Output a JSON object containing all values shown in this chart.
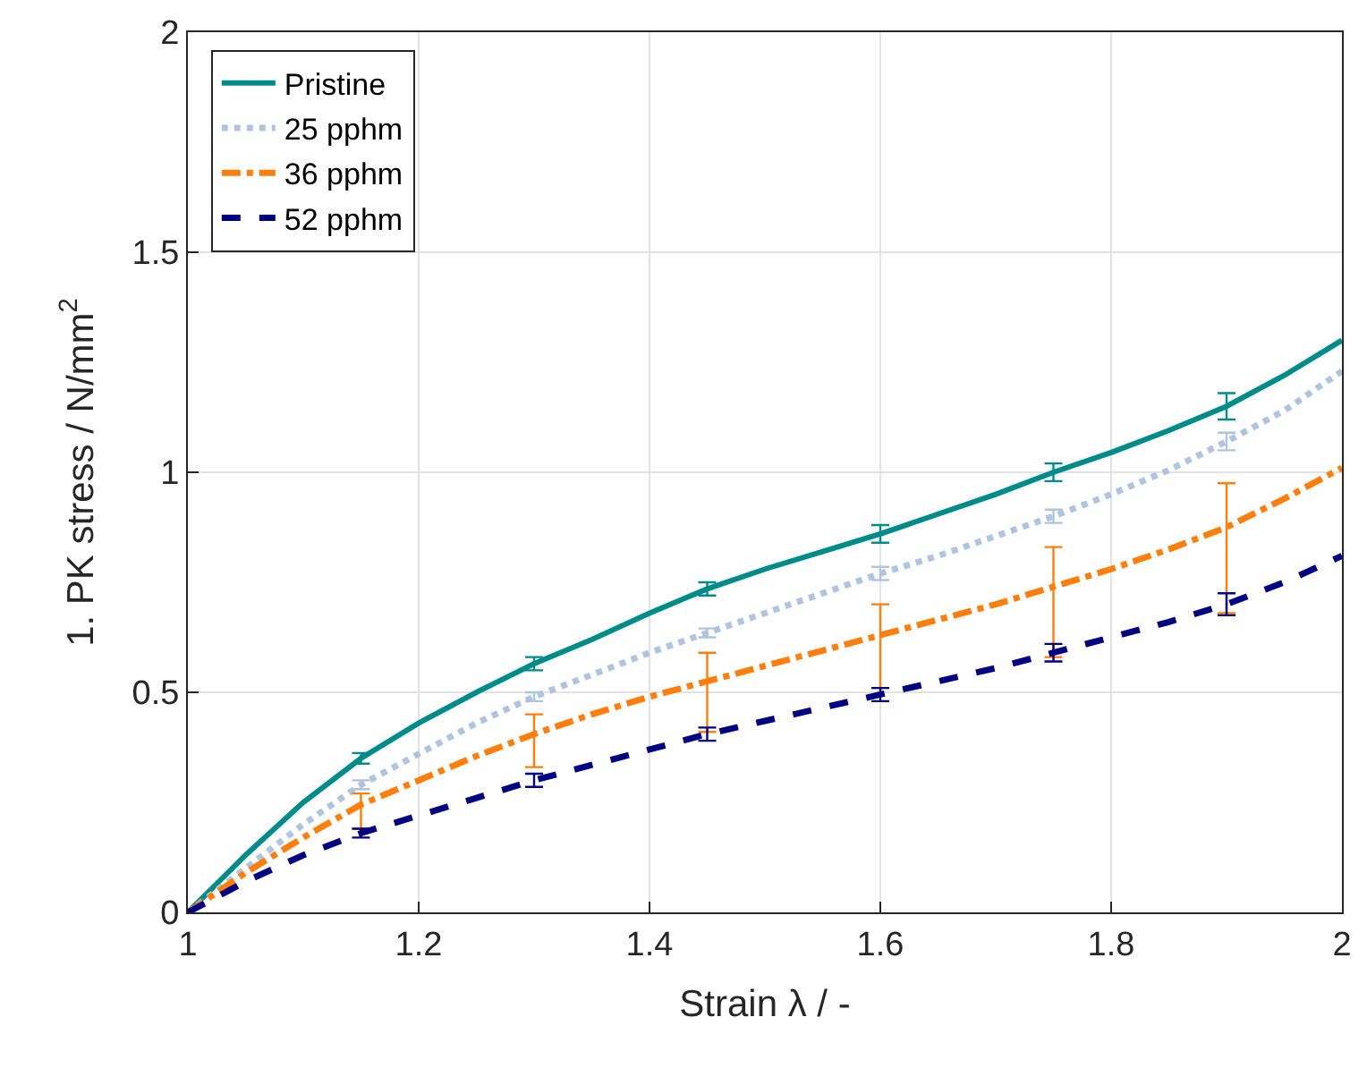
{
  "chart_data": {
    "type": "line",
    "xlabel": "Strain λ / -",
    "ylabel": "1. PK stress / N/mm$^{2}$",
    "x": [
      1,
      1.05,
      1.1,
      1.15,
      1.2,
      1.25,
      1.3,
      1.35,
      1.4,
      1.45,
      1.5,
      1.55,
      1.6,
      1.65,
      1.7,
      1.75,
      1.8,
      1.85,
      1.9,
      1.95,
      2
    ],
    "xlim": [
      1,
      2
    ],
    "xticks": [
      1,
      1.2,
      1.4,
      1.6,
      1.8,
      2
    ],
    "ylim": [
      0,
      2
    ],
    "yticks": [
      0,
      0.5,
      1,
      1.5,
      2
    ],
    "grid": true,
    "legend": "top left",
    "marker": "none",
    "series": [
      {
        "name": "Pristine",
        "color": "#008b8b",
        "line_style": "solid",
        "values": [
          0,
          0.13,
          0.25,
          0.35,
          0.43,
          0.5,
          0.565,
          0.62,
          0.68,
          0.735,
          0.78,
          0.82,
          0.86,
          0.905,
          0.95,
          1.0,
          1.045,
          1.095,
          1.15,
          1.22,
          1.3
        ],
        "errors": [
          null,
          null,
          null,
          0.012,
          null,
          null,
          0.015,
          null,
          null,
          0.015,
          null,
          null,
          0.02,
          null,
          null,
          0.02,
          null,
          null,
          0.03,
          null,
          null
        ]
      },
      {
        "name": "25 pphm",
        "color": "#b0c4de",
        "line_style": "dotted",
        "values": [
          0,
          0.1,
          0.2,
          0.29,
          0.36,
          0.43,
          0.49,
          0.54,
          0.59,
          0.635,
          0.68,
          0.725,
          0.77,
          0.81,
          0.855,
          0.9,
          0.95,
          1.005,
          1.07,
          1.14,
          1.23
        ],
        "errors": [
          null,
          null,
          null,
          0.01,
          null,
          null,
          0.01,
          null,
          null,
          0.01,
          null,
          null,
          0.015,
          null,
          null,
          0.015,
          null,
          null,
          0.02,
          null,
          null
        ]
      },
      {
        "name": "36 pphm",
        "color": "#ff7f0e",
        "line_style": "dashdot",
        "values": [
          0,
          0.09,
          0.17,
          0.245,
          0.3,
          0.355,
          0.405,
          0.45,
          0.49,
          0.525,
          0.56,
          0.595,
          0.63,
          0.665,
          0.7,
          0.74,
          0.78,
          0.825,
          0.875,
          0.94,
          1.01
        ],
        "errors": [
          null,
          null,
          null,
          [
            0.19,
            0.27
          ],
          null,
          null,
          [
            0.33,
            0.45
          ],
          null,
          null,
          [
            0.41,
            0.59
          ],
          null,
          null,
          [
            0.51,
            0.7
          ],
          null,
          null,
          [
            0.58,
            0.83
          ],
          null,
          null,
          [
            0.68,
            0.975
          ],
          null,
          null
        ]
      },
      {
        "name": "52 pphm",
        "color": "#000080",
        "line_style": "dashed",
        "values": [
          0,
          0.07,
          0.13,
          0.18,
          0.22,
          0.26,
          0.3,
          0.335,
          0.37,
          0.405,
          0.435,
          0.465,
          0.495,
          0.525,
          0.555,
          0.59,
          0.625,
          0.66,
          0.7,
          0.75,
          0.81
        ],
        "errors": [
          null,
          null,
          null,
          0.01,
          null,
          null,
          0.015,
          null,
          null,
          0.015,
          null,
          null,
          0.015,
          null,
          null,
          0.02,
          null,
          null,
          0.025,
          null,
          null
        ]
      }
    ]
  }
}
